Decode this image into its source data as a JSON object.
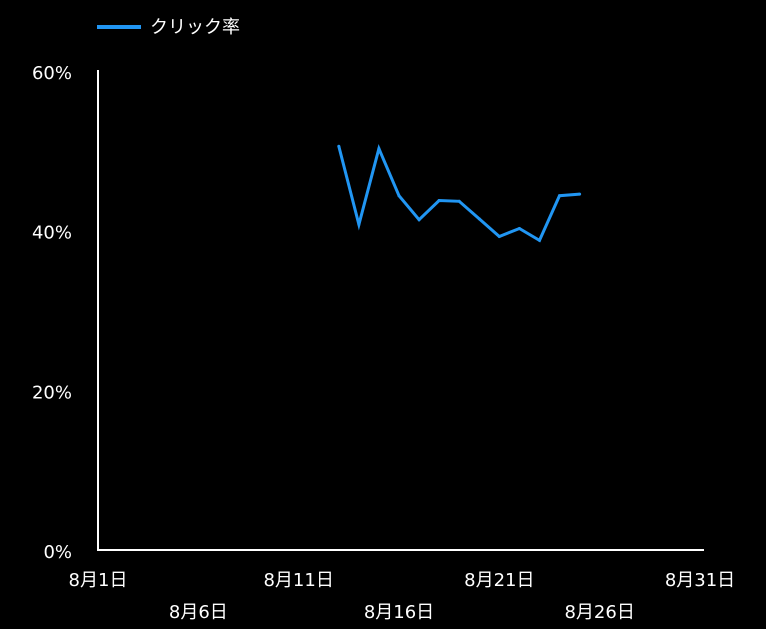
{
  "chart_data": {
    "type": "line",
    "title": "",
    "xlabel": "",
    "ylabel": "",
    "x_ticks": [
      "8月1日",
      "8月6日",
      "8月11日",
      "8月16日",
      "8月21日",
      "8月26日",
      "8月31日"
    ],
    "y_ticks": [
      "0%",
      "20%",
      "40%",
      "60%"
    ],
    "xlim": [
      "8月1日",
      "8月31日"
    ],
    "ylim": [
      0,
      60
    ],
    "unit": "%",
    "grid": false,
    "legend": "top-left",
    "series": [
      {
        "name": "クリック率",
        "color": "#2196F3",
        "x": [
          "8月13日",
          "8月14日",
          "8月15日",
          "8月16日",
          "8月17日",
          "8月18日",
          "8月19日",
          "8月20日",
          "8月21日",
          "8月22日",
          "8月23日",
          "8月24日",
          "8月25日"
        ],
        "values": [
          50.7,
          40.9,
          50.4,
          44.5,
          41.5,
          43.9,
          43.8,
          41.6,
          39.4,
          40.4,
          38.9,
          44.5,
          44.7
        ]
      }
    ]
  },
  "colors": {
    "background": "#000000",
    "axis": "#ffffff",
    "text": "#ffffff"
  }
}
